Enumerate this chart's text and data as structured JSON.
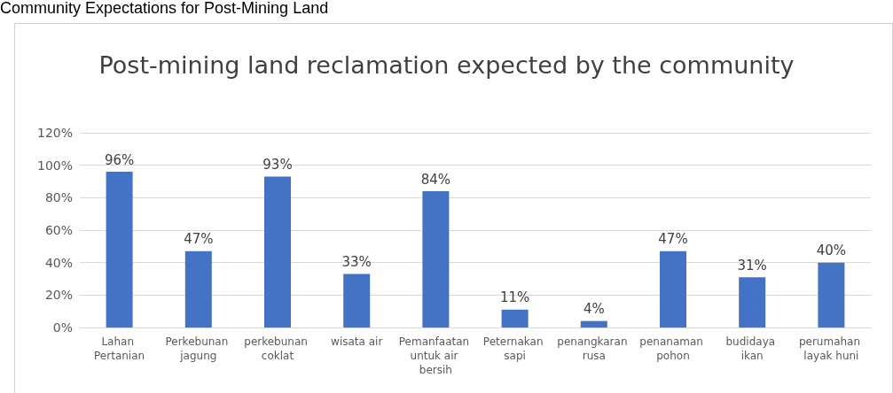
{
  "chart_data": {
    "type": "bar",
    "title": "Post-mining land reclamation expected by the community",
    "annotations": [
      "Community Expectations for Post-Mining Land"
    ],
    "categories": [
      "Lahan Pertanian",
      "Perkebunan jagung",
      "perkebunan coklat",
      "wisata air",
      "Pemanfaatan untuk air bersih",
      "Peternakan sapi",
      "penangkaran rusa",
      "penanaman pohon",
      "budidaya ikan",
      "perumahan layak huni"
    ],
    "values": [
      96,
      47,
      93,
      33,
      84,
      11,
      4,
      47,
      31,
      40
    ],
    "value_labels": [
      "96%",
      "47%",
      "93%",
      "33%",
      "84%",
      "11%",
      "4%",
      "47%",
      "31%",
      "40%"
    ],
    "color": "#4472c4",
    "ylim": [
      0,
      120
    ],
    "yticks": [
      {
        "value": 0,
        "label": "0%"
      },
      {
        "value": 20,
        "label": "20%"
      },
      {
        "value": 40,
        "label": "40%"
      },
      {
        "value": 60,
        "label": "60%"
      },
      {
        "value": 80,
        "label": "80%"
      },
      {
        "value": 100,
        "label": "100%"
      },
      {
        "value": 120,
        "label": "120%"
      }
    ],
    "grid": "y"
  }
}
